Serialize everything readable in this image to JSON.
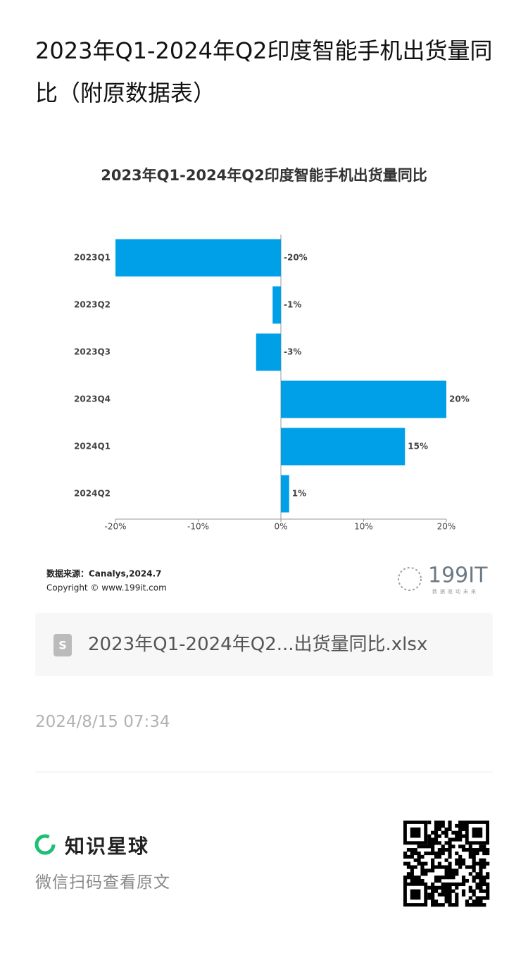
{
  "header": {
    "title": "2023年Q1-2024年Q2印度智能手机出货量同比（附原数据表）"
  },
  "chart_data": {
    "type": "hbar",
    "title": "2023年Q1-2024年Q2印度智能手机出货量同比",
    "categories": [
      "2023Q1",
      "2023Q2",
      "2023Q3",
      "2023Q4",
      "2024Q1",
      "2024Q2"
    ],
    "values": [
      -20,
      -1,
      -3,
      20,
      15,
      1
    ],
    "value_labels": [
      "-20%",
      "-1%",
      "-3%",
      "20%",
      "15%",
      "1%"
    ],
    "color": "#00a0e9",
    "xlim": [
      -20,
      20
    ],
    "xticks": [
      {
        "value": -20,
        "label": "-20%"
      },
      {
        "value": -10,
        "label": "-10%"
      },
      {
        "value": 0,
        "label": "0%"
      },
      {
        "value": 10,
        "label": "10%"
      },
      {
        "value": 20,
        "label": "20%"
      }
    ],
    "source": "数据来源：Canalys,2024.7",
    "copyright": "Copyright © www.199it.com"
  },
  "logo": {
    "name": "199IT",
    "slogan": "数据驱动未来"
  },
  "attachment": {
    "filename": "2023年Q1-2024年Q2...出货量同比.xlsx"
  },
  "timestamp": "2024/8/15 07:34",
  "footer": {
    "brand": "知识星球",
    "hint": "微信扫码查看原文"
  }
}
